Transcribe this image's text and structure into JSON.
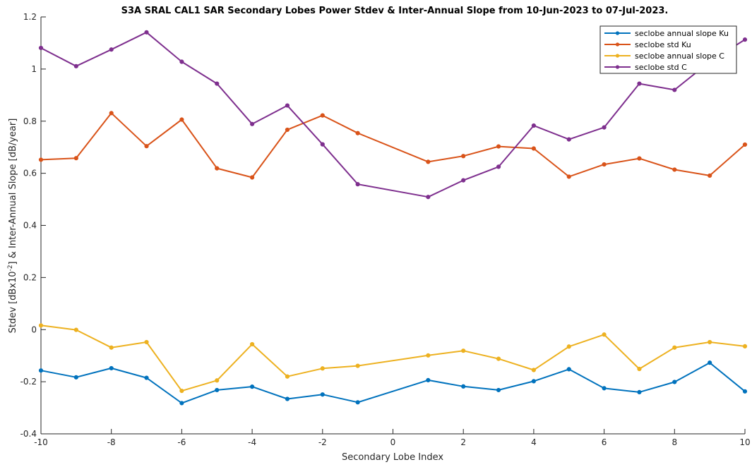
{
  "chart_data": {
    "type": "line",
    "title": "S3A SRAL CAL1 SAR Secondary Lobes Power Stdev & Inter-Annual Slope from 10-Jun-2023 to 07-Jul-2023.",
    "xlabel": "Secondary Lobe Index",
    "ylabel_parts": {
      "pre": "Stdev [dBx10",
      "sup": "-2",
      "post": "] & Inter-Annual Slope [dB/year]"
    },
    "xlim": [
      -10,
      10
    ],
    "ylim": [
      -0.4,
      1.2
    ],
    "xticks": [
      -10,
      -8,
      -6,
      -4,
      -2,
      0,
      2,
      4,
      6,
      8,
      10
    ],
    "yticks": [
      -0.4,
      -0.2,
      0,
      0.2,
      0.4,
      0.6,
      0.8,
      1,
      1.2
    ],
    "ytick_labels": [
      "-0.4",
      "-0.2",
      "0",
      "0.2",
      "0.4",
      "0.6",
      "0.8",
      "1",
      "1.2"
    ],
    "grid": false,
    "legend_position": "top-right",
    "x": [
      -10,
      -9,
      -8,
      -7,
      -6,
      -5,
      -4,
      -3,
      -2,
      -1,
      1,
      2,
      3,
      4,
      5,
      6,
      7,
      8,
      9,
      10
    ],
    "series": [
      {
        "name": "seclobe annual slope Ku",
        "color": "#0072BD",
        "values": [
          -0.157,
          -0.183,
          -0.148,
          -0.185,
          -0.282,
          -0.232,
          -0.219,
          -0.266,
          -0.249,
          -0.279,
          -0.194,
          -0.218,
          -0.232,
          -0.198,
          -0.152,
          -0.225,
          -0.24,
          -0.201,
          -0.127,
          -0.237
        ]
      },
      {
        "name": "seclobe std Ku",
        "color": "#D95319",
        "values": [
          0.652,
          0.658,
          0.831,
          0.704,
          0.806,
          0.619,
          0.584,
          0.767,
          0.822,
          0.754,
          0.644,
          0.666,
          0.703,
          0.695,
          0.587,
          0.634,
          0.657,
          0.614,
          0.591,
          0.71
        ]
      },
      {
        "name": "seclobe annual slope C",
        "color": "#EDB120",
        "values": [
          0.016,
          -0.001,
          -0.069,
          -0.048,
          -0.235,
          -0.195,
          -0.056,
          -0.18,
          -0.149,
          -0.139,
          -0.099,
          -0.081,
          -0.112,
          -0.155,
          -0.065,
          -0.019,
          -0.151,
          -0.069,
          -0.048,
          -0.064
        ]
      },
      {
        "name": "seclobe std C",
        "color": "#7E2F8E",
        "values": [
          1.081,
          1.011,
          1.075,
          1.141,
          1.028,
          0.944,
          0.789,
          0.86,
          0.711,
          0.558,
          0.509,
          0.573,
          0.625,
          0.783,
          0.73,
          0.776,
          0.944,
          0.92,
          1.028,
          1.113
        ]
      }
    ]
  }
}
